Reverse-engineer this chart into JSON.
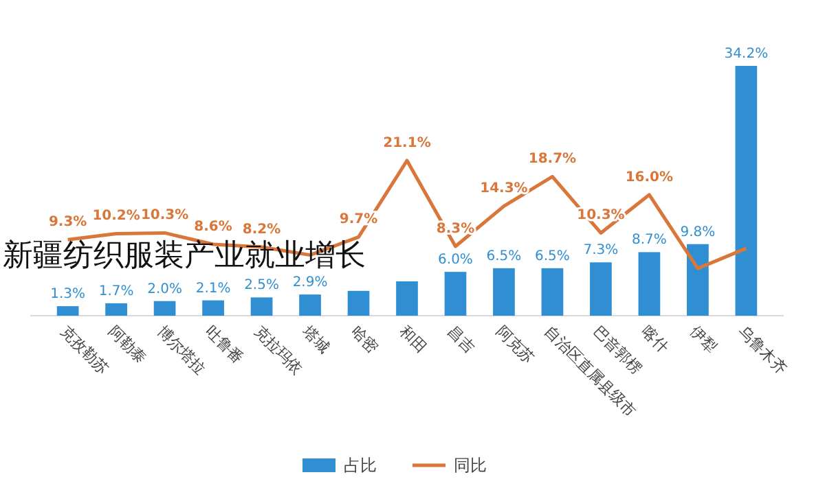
{
  "chart_data": {
    "type": "bar",
    "title": "新疆纺织服装产业就业增长",
    "categories": [
      "克孜勒苏",
      "阿勒泰",
      "博尔塔拉",
      "吐鲁番",
      "克拉玛依",
      "塔城",
      "哈密",
      "和田",
      "昌吉",
      "阿克苏",
      "自治区直属县级市",
      "巴音郭楞",
      "喀什",
      "伊犁",
      "乌鲁木齐"
    ],
    "series": [
      {
        "name": "占比",
        "color": "#2f8fd2",
        "values": [
          1.3,
          1.7,
          2.0,
          2.1,
          2.5,
          2.9,
          3.4,
          4.7,
          6.0,
          6.5,
          6.5,
          7.3,
          8.7,
          9.8,
          34.2
        ],
        "value_labels": [
          "1.3%",
          "1.7%",
          "2.0%",
          "2.1%",
          "2.5%",
          "2.9%",
          null,
          null,
          "6.0%",
          "6.5%",
          "6.5%",
          "7.3%",
          "8.7%",
          "9.8%",
          "34.2%"
        ]
      },
      {
        "name": "同比",
        "type": "line",
        "axis": "y2",
        "color": "#d9773a",
        "values": [
          9.3,
          10.2,
          10.3,
          8.6,
          8.2,
          7.0,
          9.7,
          21.1,
          8.3,
          14.3,
          18.7,
          10.3,
          16.0,
          5.0,
          8.0
        ],
        "value_labels": [
          "9.3%",
          "10.2%",
          "10.3%",
          "8.6%",
          "8.2%",
          null,
          "9.7%",
          "21.1%",
          "8.3%",
          "14.3%",
          "18.7%",
          "10.3%",
          "16.0%",
          null,
          null
        ]
      }
    ],
    "tick_labels": "x",
    "legend": "bottom",
    "grid": false,
    "marker": "none"
  }
}
